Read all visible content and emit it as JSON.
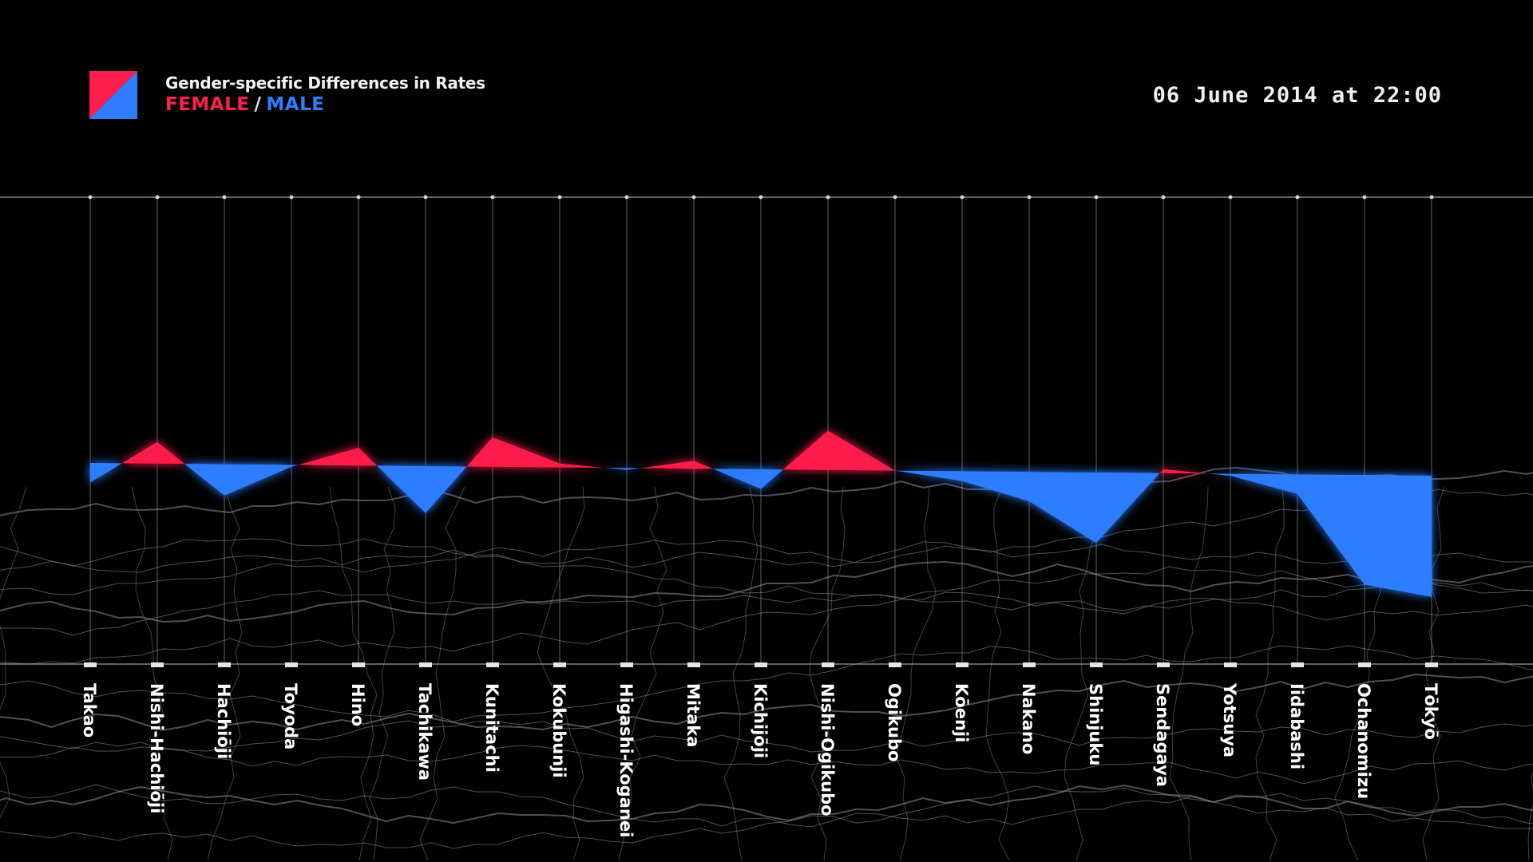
{
  "legend": {
    "title": "Gender-specific Differences in Rates",
    "female_label": "FEMALE",
    "separator": "/",
    "male_label": "MALE"
  },
  "timestamp": "06 June 2014 at 22:00",
  "colors": {
    "female": "#ff1f4e",
    "male": "#2f7dff",
    "grid": "#9aa4b0",
    "map": "#8a9299"
  },
  "chart_data": {
    "type": "area",
    "categories": [
      "Takao",
      "Nishi-Hachiōji",
      "Hachiōji",
      "Toyoda",
      "Hino",
      "Tachikawa",
      "Kunitachi",
      "Kokubunji",
      "Higashi-Koganei",
      "Mitaka",
      "Kichijōji",
      "Nishi-Ogikubo",
      "Ogikubo",
      "Kōenji",
      "Nakano",
      "Shinjuku",
      "Sendagaya",
      "Yotsuya",
      "Iidabashi",
      "Ochanomizu",
      "Tōkyō"
    ],
    "values": [
      -0.5,
      0.55,
      -0.8,
      -0.05,
      0.45,
      -1.2,
      0.75,
      0.1,
      -0.05,
      0.2,
      -0.5,
      1.0,
      0.0,
      -0.25,
      -0.75,
      -1.8,
      0.1,
      -0.05,
      -0.5,
      -2.8,
      -3.1
    ],
    "title": "Gender-specific Differences in Rates",
    "series_positive": "FEMALE",
    "series_negative": "MALE",
    "ylim": [
      -3.5,
      7
    ],
    "grid": true
  }
}
